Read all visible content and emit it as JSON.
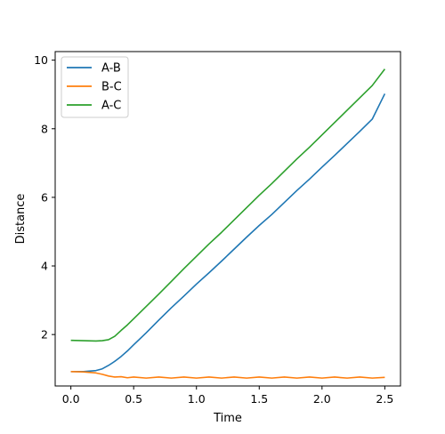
{
  "chart_data": {
    "type": "line",
    "title": "",
    "xlabel": "Time",
    "ylabel": "Distance",
    "xlim": [
      -0.125,
      2.625
    ],
    "ylim": [
      0.5,
      10.25
    ],
    "xticks": [
      "0.0",
      "0.5",
      "1.0",
      "1.5",
      "2.0",
      "2.5"
    ],
    "yticks": [
      "2",
      "4",
      "6",
      "8",
      "10"
    ],
    "grid": false,
    "legend_placement": "top-left",
    "x": [
      0.0,
      0.1,
      0.2,
      0.25,
      0.3,
      0.35,
      0.4,
      0.45,
      0.5,
      0.6,
      0.7,
      0.8,
      0.9,
      1.0,
      1.1,
      1.2,
      1.3,
      1.4,
      1.5,
      1.6,
      1.7,
      1.8,
      1.9,
      2.0,
      2.1,
      2.2,
      2.3,
      2.4,
      2.5
    ],
    "series": [
      {
        "name": "A-B",
        "color": "#1f77b4",
        "values": [
          0.92,
          0.92,
          0.95,
          1.0,
          1.1,
          1.22,
          1.36,
          1.52,
          1.7,
          2.05,
          2.42,
          2.78,
          3.12,
          3.47,
          3.8,
          4.14,
          4.49,
          4.84,
          5.18,
          5.5,
          5.85,
          6.2,
          6.53,
          6.88,
          7.22,
          7.57,
          7.92,
          8.28,
          9.02
        ]
      },
      {
        "name": "B-C",
        "color": "#ff7f0e",
        "values": [
          0.92,
          0.91,
          0.88,
          0.84,
          0.79,
          0.76,
          0.77,
          0.74,
          0.76,
          0.73,
          0.76,
          0.73,
          0.76,
          0.73,
          0.76,
          0.73,
          0.76,
          0.73,
          0.76,
          0.73,
          0.76,
          0.73,
          0.76,
          0.73,
          0.76,
          0.73,
          0.76,
          0.73,
          0.75
        ]
      },
      {
        "name": "A-C",
        "color": "#2ca02c",
        "values": [
          1.83,
          1.82,
          1.81,
          1.82,
          1.85,
          1.95,
          2.12,
          2.28,
          2.46,
          2.82,
          3.18,
          3.55,
          3.92,
          4.28,
          4.64,
          4.98,
          5.34,
          5.7,
          6.06,
          6.4,
          6.76,
          7.12,
          7.46,
          7.82,
          8.18,
          8.54,
          8.9,
          9.26,
          9.74
        ]
      }
    ]
  }
}
